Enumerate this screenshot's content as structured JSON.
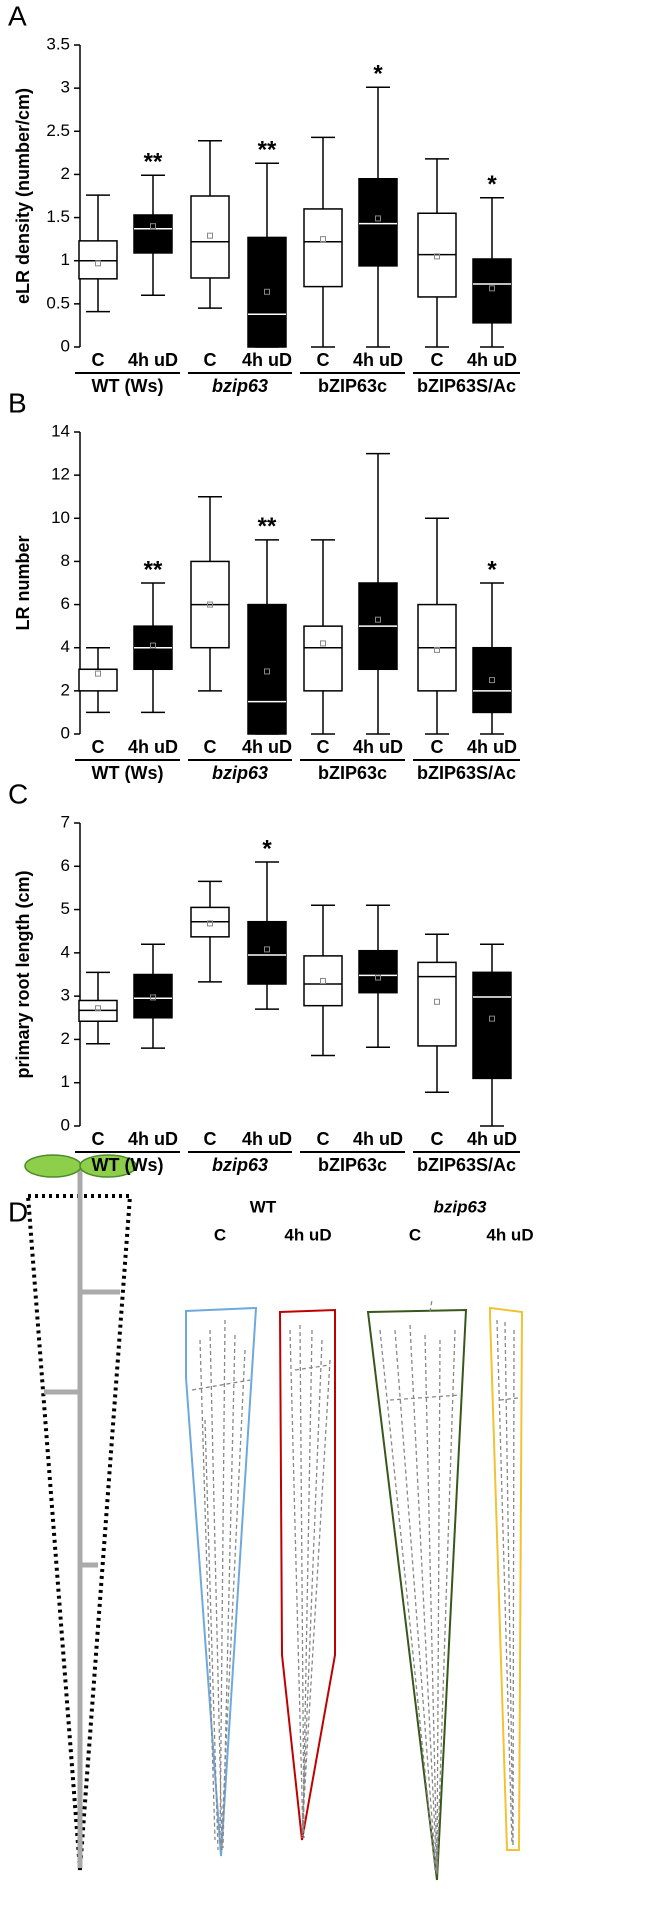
{
  "chart_data": [
    {
      "type": "box",
      "panel": "A",
      "ylabel": "eLR density (number/cm)",
      "ylim": [
        0,
        3.5
      ],
      "yticks": [
        0,
        0.5,
        1,
        1.5,
        2,
        2.5,
        3,
        3.5
      ],
      "categories": [
        "C",
        "4h uD",
        "C",
        "4h uD",
        "C",
        "4h uD",
        "C",
        "4h uD"
      ],
      "groups": [
        "WT (Ws)",
        "bzip63",
        "bZIP63c",
        "bZIP63S/Ac"
      ],
      "boxes": [
        {
          "whisker_low": 0.41,
          "q1": 0.79,
          "median": 1.0,
          "q3": 1.23,
          "whisker_high": 1.76,
          "mean": 0.97,
          "color": "#ffffff"
        },
        {
          "whisker_low": 0.6,
          "q1": 1.09,
          "median": 1.37,
          "q3": 1.53,
          "whisker_high": 1.99,
          "mean": 1.4,
          "color": "#000000",
          "annotation": "**"
        },
        {
          "whisker_low": 0.45,
          "q1": 0.8,
          "median": 1.22,
          "q3": 1.75,
          "whisker_high": 2.39,
          "mean": 1.29,
          "color": "#ffffff"
        },
        {
          "whisker_low": 0,
          "q1": 0,
          "median": 0.38,
          "q3": 1.27,
          "whisker_high": 2.13,
          "mean": 0.64,
          "color": "#000000",
          "annotation": "**"
        },
        {
          "whisker_low": 0,
          "q1": 0.7,
          "median": 1.22,
          "q3": 1.6,
          "whisker_high": 2.43,
          "mean": 1.25,
          "color": "#ffffff"
        },
        {
          "whisker_low": 0,
          "q1": 0.94,
          "median": 1.43,
          "q3": 1.95,
          "whisker_high": 3.01,
          "mean": 1.49,
          "color": "#000000",
          "annotation": "*"
        },
        {
          "whisker_low": 0,
          "q1": 0.58,
          "median": 1.07,
          "q3": 1.55,
          "whisker_high": 2.18,
          "mean": 1.05,
          "color": "#ffffff"
        },
        {
          "whisker_low": 0,
          "q1": 0.28,
          "median": 0.73,
          "q3": 1.02,
          "whisker_high": 1.73,
          "mean": 0.68,
          "color": "#000000",
          "annotation": "*"
        }
      ]
    },
    {
      "type": "box",
      "panel": "B",
      "ylabel": "LR number",
      "ylim": [
        0,
        14
      ],
      "yticks": [
        0,
        2,
        4,
        6,
        8,
        10,
        12,
        14
      ],
      "categories": [
        "C",
        "4h uD",
        "C",
        "4h uD",
        "C",
        "4h uD",
        "C",
        "4h uD"
      ],
      "groups": [
        "WT (Ws)",
        "bzip63",
        "bZIP63c",
        "bZIP63S/Ac"
      ],
      "boxes": [
        {
          "whisker_low": 1,
          "q1": 2,
          "median": 3,
          "q3": 3,
          "whisker_high": 4,
          "mean": 2.8,
          "color": "#ffffff"
        },
        {
          "whisker_low": 1,
          "q1": 3,
          "median": 4,
          "q3": 5,
          "whisker_high": 7,
          "mean": 4.1,
          "color": "#000000",
          "annotation": "**"
        },
        {
          "whisker_low": 2,
          "q1": 4,
          "median": 6,
          "q3": 8,
          "whisker_high": 11,
          "mean": 6,
          "color": "#ffffff"
        },
        {
          "whisker_low": 0,
          "q1": 0,
          "median": 1.5,
          "q3": 6,
          "whisker_high": 9,
          "mean": 2.9,
          "color": "#000000",
          "annotation": "**"
        },
        {
          "whisker_low": 0,
          "q1": 2,
          "median": 4,
          "q3": 5,
          "whisker_high": 9,
          "mean": 4.2,
          "color": "#ffffff"
        },
        {
          "whisker_low": 0,
          "q1": 3,
          "median": 5,
          "q3": 7,
          "whisker_high": 13,
          "mean": 5.3,
          "color": "#000000"
        },
        {
          "whisker_low": 0,
          "q1": 2,
          "median": 4,
          "q3": 6,
          "whisker_high": 10,
          "mean": 3.9,
          "color": "#ffffff"
        },
        {
          "whisker_low": 0,
          "q1": 1,
          "median": 2,
          "q3": 4,
          "whisker_high": 7,
          "mean": 2.5,
          "color": "#000000",
          "annotation": "*"
        }
      ]
    },
    {
      "type": "box",
      "panel": "C",
      "ylabel": "primary root length (cm)",
      "ylim": [
        0,
        7
      ],
      "yticks": [
        0,
        1,
        2,
        3,
        4,
        5,
        6,
        7
      ],
      "categories": [
        "C",
        "4h uD",
        "C",
        "4h uD",
        "C",
        "4h uD",
        "C",
        "4h uD"
      ],
      "groups": [
        "WT (Ws)",
        "bzip63",
        "bZIP63c",
        "bZIP63S/Ac"
      ],
      "boxes": [
        {
          "whisker_low": 1.9,
          "q1": 2.42,
          "median": 2.67,
          "q3": 2.9,
          "whisker_high": 3.55,
          "mean": 2.72,
          "color": "#ffffff"
        },
        {
          "whisker_low": 1.8,
          "q1": 2.5,
          "median": 2.95,
          "q3": 3.5,
          "whisker_high": 4.2,
          "mean": 2.97,
          "color": "#000000"
        },
        {
          "whisker_low": 3.33,
          "q1": 4.37,
          "median": 4.72,
          "q3": 5.05,
          "whisker_high": 5.65,
          "mean": 4.68,
          "color": "#ffffff"
        },
        {
          "whisker_low": 2.7,
          "q1": 3.28,
          "median": 3.95,
          "q3": 4.72,
          "whisker_high": 6.1,
          "mean": 4.08,
          "color": "#000000",
          "annotation": "*"
        },
        {
          "whisker_low": 1.63,
          "q1": 2.78,
          "median": 3.28,
          "q3": 3.93,
          "whisker_high": 5.1,
          "mean": 3.35,
          "color": "#ffffff"
        },
        {
          "whisker_low": 1.82,
          "q1": 3.08,
          "median": 3.48,
          "q3": 4.05,
          "whisker_high": 5.1,
          "mean": 3.43,
          "color": "#000000"
        },
        {
          "whisker_low": 0.78,
          "q1": 1.85,
          "median": 3.45,
          "q3": 3.78,
          "whisker_high": 4.43,
          "mean": 2.87,
          "color": "#ffffff"
        },
        {
          "whisker_low": 0,
          "q1": 1.1,
          "median": 2.98,
          "q3": 3.55,
          "whisker_high": 4.2,
          "mean": 2.48,
          "color": "#000000"
        }
      ]
    }
  ],
  "panel_d": {
    "panel": "D",
    "groups": [
      "WT",
      "bzip63"
    ],
    "conditions": [
      "C",
      "4h uD",
      "C",
      "4h uD"
    ]
  }
}
